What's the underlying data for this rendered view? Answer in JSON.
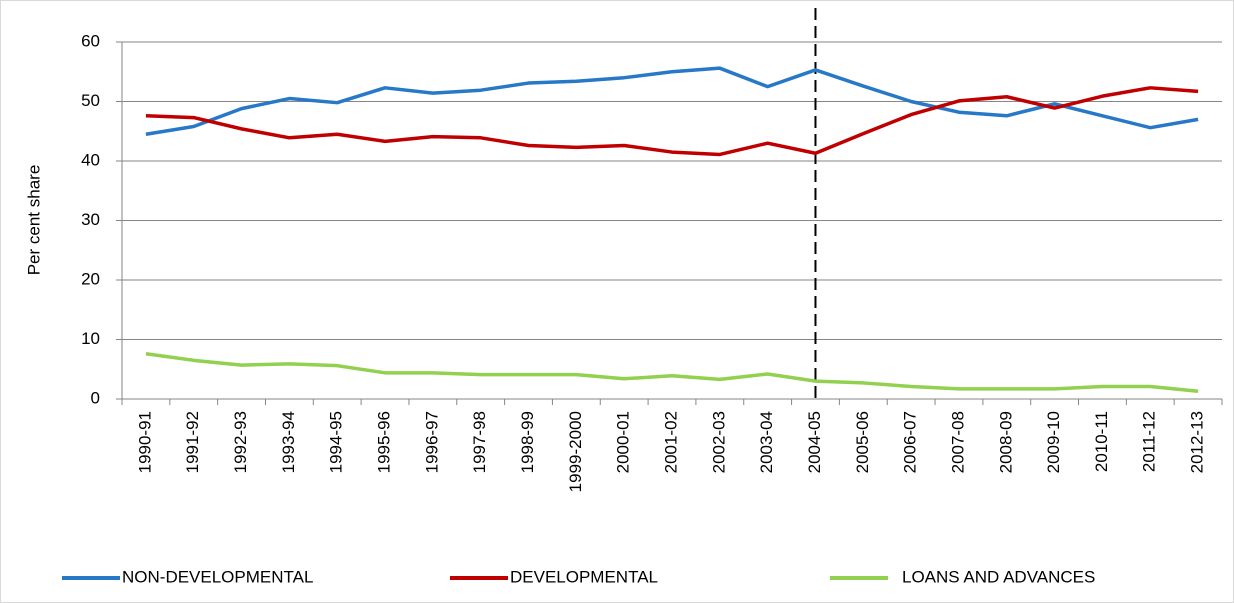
{
  "chart_data": {
    "type": "line",
    "y_label": "Per cent share",
    "categories": [
      "1990-91",
      "1991-92",
      "1992-93",
      "1993-94",
      "1994-95",
      "1995-96",
      "1996-97",
      "1997-98",
      "1998-99",
      "1999-2000",
      "2000-01",
      "2001-02",
      "2002-03",
      "2003-04",
      "2004-05",
      "2005-06",
      "2006-07",
      "2007-08",
      "2008-09",
      "2009-10",
      "2010-11",
      "2011-12",
      "2012-13"
    ],
    "series": [
      {
        "name": "NON-DEVELOPMENTAL",
        "color": "#2878c8",
        "values": [
          44.5,
          45.8,
          48.8,
          50.5,
          49.8,
          52.3,
          51.4,
          51.9,
          53.1,
          53.4,
          54.0,
          55.0,
          55.6,
          52.5,
          55.3,
          52.6,
          50.0,
          48.2,
          47.6,
          49.6,
          47.6,
          45.6,
          47.0
        ]
      },
      {
        "name": "DEVELOPMENTAL",
        "color": "#c00000",
        "values": [
          47.6,
          47.3,
          45.4,
          43.9,
          44.5,
          43.3,
          44.1,
          43.9,
          42.6,
          42.3,
          42.6,
          41.5,
          41.1,
          43.0,
          41.3,
          44.6,
          47.8,
          50.1,
          50.8,
          48.9,
          50.9,
          52.3,
          51.7
        ]
      },
      {
        "name": "LOANS AND ADVANCES",
        "color": "#92d050",
        "values": [
          7.6,
          6.5,
          5.7,
          5.9,
          5.6,
          4.4,
          4.4,
          4.1,
          4.1,
          4.1,
          3.4,
          3.9,
          3.3,
          4.2,
          3.0,
          2.7,
          2.1,
          1.7,
          1.7,
          1.7,
          2.1,
          2.1,
          1.3
        ]
      }
    ],
    "vline_category": "2004-05",
    "ylim": [
      0,
      60
    ],
    "yticks": [
      0,
      10,
      20,
      30,
      40,
      50,
      60
    ],
    "grid": true,
    "legend": "bottom"
  }
}
